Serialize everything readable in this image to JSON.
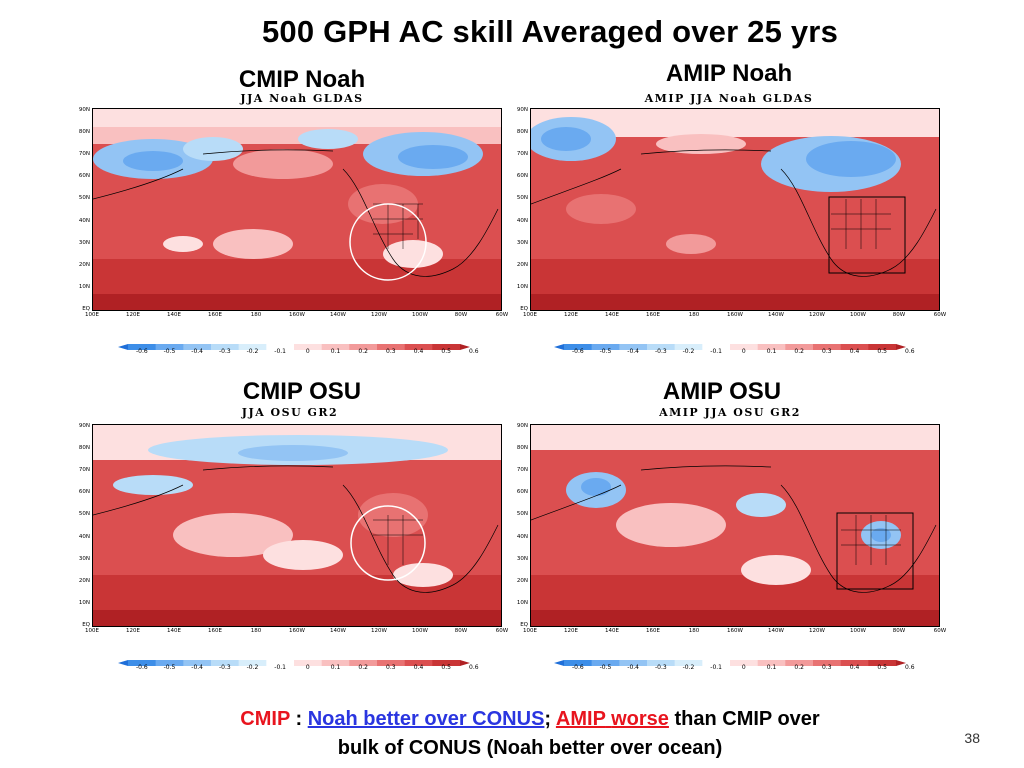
{
  "title": "500 GPH AC skill Averaged over 25 yrs",
  "panels": {
    "p0": {
      "title": "CMIP Noah",
      "subtitle": "JJA Noah GLDAS"
    },
    "p1": {
      "title": "AMIP Noah",
      "subtitle": "AMIP JJA Noah GLDAS"
    },
    "p2": {
      "title": "CMIP OSU",
      "subtitle": "JJA OSU GR2"
    },
    "p3": {
      "title": "AMIP OSU",
      "subtitle": "AMIP JJA OSU GR2"
    }
  },
  "lat_ticks": [
    "90N",
    "80N",
    "70N",
    "60N",
    "50N",
    "40N",
    "30N",
    "20N",
    "10N",
    "EQ"
  ],
  "lon_ticks": [
    "100E",
    "120E",
    "140E",
    "160E",
    "180",
    "160W",
    "140W",
    "120W",
    "100W",
    "80W",
    "60W"
  ],
  "colorbar": {
    "labels": [
      "-0.6",
      "-0.5",
      "-0.4",
      "-0.3",
      "-0.2",
      "-0.1",
      "0",
      "0.1",
      "0.2",
      "0.3",
      "0.4",
      "0.5",
      "0.6"
    ],
    "colors": [
      "#1f6fd9",
      "#3d8ee8",
      "#6aaaf0",
      "#93c4f4",
      "#b8dcf8",
      "#d8eefb",
      "#ffffff",
      "#fde0e0",
      "#f9c0c0",
      "#f29a9a",
      "#e87272",
      "#db4f50",
      "#c93536",
      "#b02124"
    ]
  },
  "caption": {
    "cmip": "CMIP",
    "sep1": " : ",
    "noah_better": "Noah better over CONUS",
    "sep2": "; ",
    "amip": "AMIP",
    "space": " ",
    "worse": "worse",
    "rest1": " than CMIP over",
    "rest2": "bulk of CONUS (Noah better over ocean)"
  },
  "page_number": "38"
}
